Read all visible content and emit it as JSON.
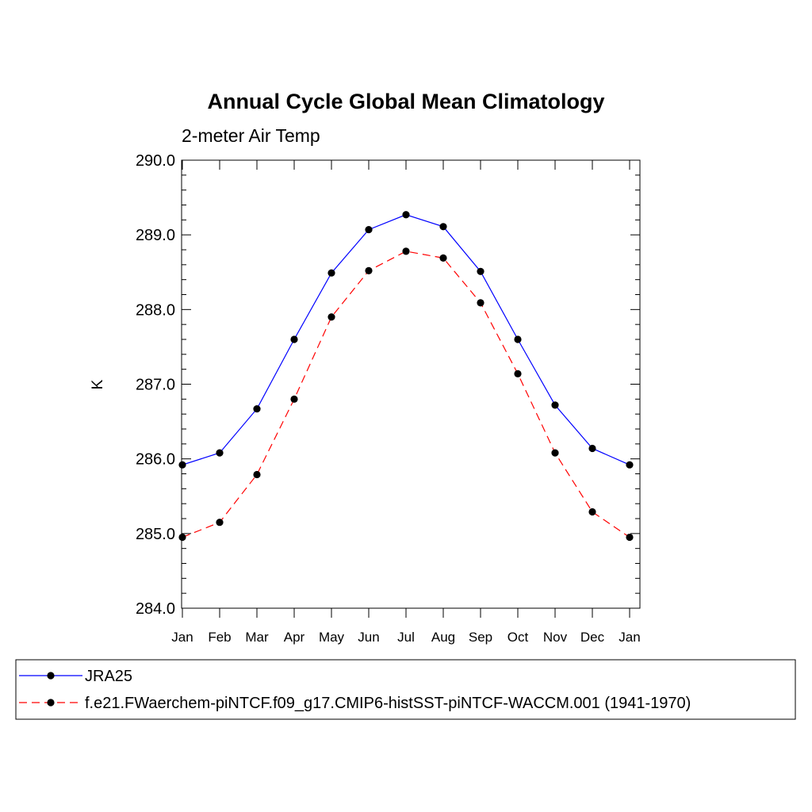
{
  "chart_data": {
    "type": "line",
    "title": "Annual Cycle Global Mean Climatology",
    "subtitle": "2-meter Air Temp",
    "ylabel": "K",
    "xlabel": "",
    "ylim": [
      284.0,
      290.0
    ],
    "y_ticks": [
      "284.0",
      "285.0",
      "286.0",
      "287.0",
      "288.0",
      "289.0",
      "290.0"
    ],
    "categories": [
      "Jan",
      "Feb",
      "Mar",
      "Apr",
      "May",
      "Jun",
      "Jul",
      "Aug",
      "Sep",
      "Oct",
      "Nov",
      "Dec",
      "Jan"
    ],
    "grid": false,
    "legend_position": "bottom",
    "series": [
      {
        "name": "JRA25",
        "color": "#0000ff",
        "line_style": "solid",
        "marker": "filled-circle",
        "values": [
          285.92,
          286.08,
          286.67,
          287.6,
          288.49,
          289.07,
          289.27,
          289.11,
          288.51,
          287.6,
          286.72,
          286.14,
          285.92
        ]
      },
      {
        "name": "f.e21.FWaerchem-piNTCF.f09_g17.CMIP6-histSST-piNTCF-WACCM.001 (1941-1970)",
        "color": "#ff0000",
        "line_style": "dashed",
        "marker": "filled-circle",
        "values": [
          284.95,
          285.15,
          285.79,
          286.8,
          287.9,
          288.52,
          288.78,
          288.69,
          288.09,
          287.14,
          286.08,
          285.29,
          284.95
        ]
      }
    ]
  }
}
